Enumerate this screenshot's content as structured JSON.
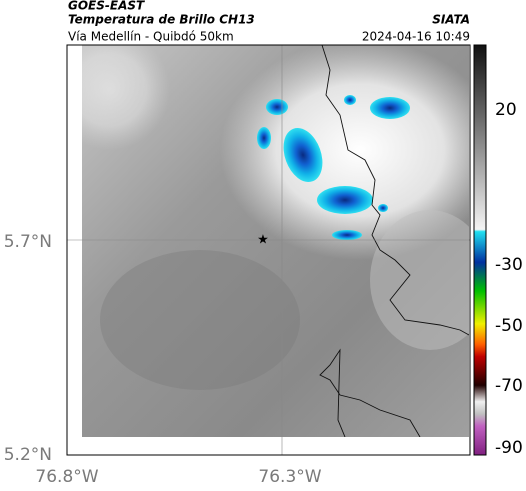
{
  "header": {
    "satellite": "GOES-EAST",
    "product": "Temperatura de Brillo CH13",
    "location": "Vía Medellín - Quibdó 50km",
    "source": "SIATA",
    "datetime": "2024-04-16 10:49"
  },
  "map": {
    "lat_labels": [
      "5.7°N",
      "5.2°N"
    ],
    "lon_labels": [
      "76.8°W",
      "76.3°W"
    ]
  },
  "colorbar": {
    "ticks": [
      20,
      -30,
      -50,
      -70,
      -90
    ]
  }
}
